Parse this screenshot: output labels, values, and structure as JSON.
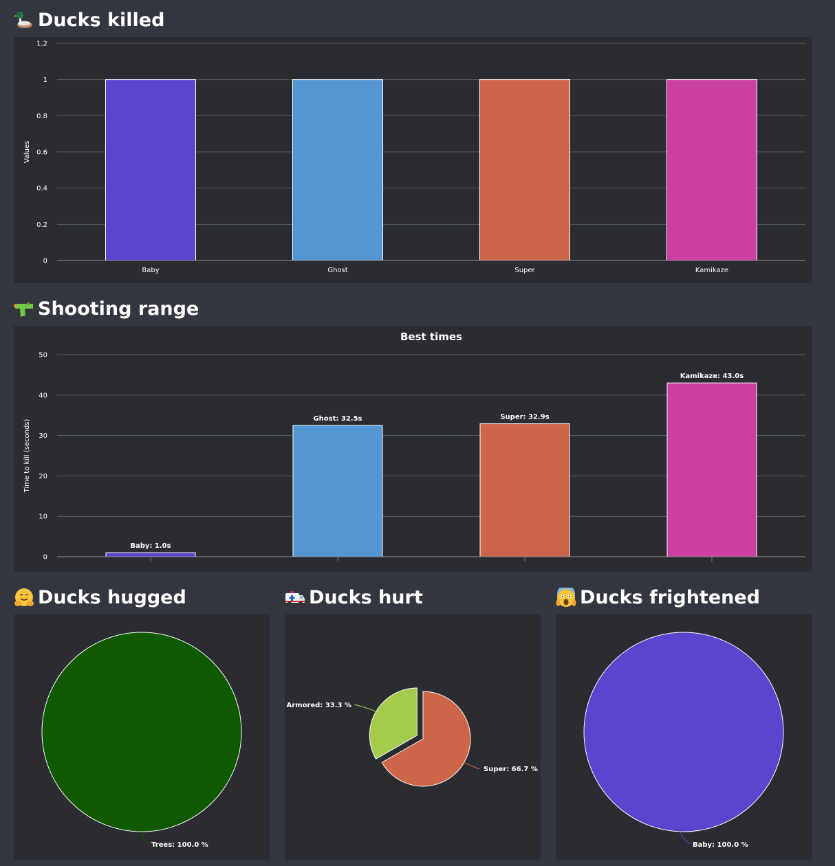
{
  "sections": {
    "killed": {
      "title": "Ducks killed",
      "icon": "duck-icon"
    },
    "shooting": {
      "title": "Shooting range",
      "icon": "water-pistol-icon"
    },
    "hugged": {
      "title": "Ducks hugged",
      "icon": "hugging-face-icon"
    },
    "hurt": {
      "title": "Ducks hurt",
      "icon": "ambulance-icon"
    },
    "frightened": {
      "title": "Ducks frightened",
      "icon": "screaming-face-icon"
    }
  },
  "chart_data": [
    {
      "id": "ducks-killed",
      "type": "bar",
      "title": "",
      "xlabel": "",
      "ylabel": "Values",
      "ylim": [
        0,
        1.2
      ],
      "yticks": [
        0,
        0.2,
        0.4,
        0.6,
        0.8,
        1,
        1.2
      ],
      "categories": [
        "Baby",
        "Ghost",
        "Super",
        "Kamikaze"
      ],
      "values": [
        1,
        1,
        1,
        1
      ],
      "colors": [
        "#5b45cf",
        "#5496d2",
        "#cd6549",
        "#cb40a1"
      ],
      "grid": true
    },
    {
      "id": "shooting-range",
      "type": "bar",
      "title": "Best times",
      "xlabel": "",
      "ylabel": "Time to kill (seconds)",
      "ylim": [
        0,
        50
      ],
      "yticks": [
        0,
        10,
        20,
        30,
        40,
        50
      ],
      "categories": [
        "Baby",
        "Ghost",
        "Super",
        "Kamikaze"
      ],
      "values": [
        1.0,
        32.5,
        32.9,
        43.0
      ],
      "data_labels": [
        "Baby: 1.0s",
        "Ghost: 32.5s",
        "Super: 32.9s",
        "Kamikaze: 43.0s"
      ],
      "colors": [
        "#5b45cf",
        "#5496d2",
        "#cd6549",
        "#cb40a1"
      ],
      "grid": true
    },
    {
      "id": "ducks-hugged",
      "type": "pie",
      "labels": [
        "Trees"
      ],
      "values": [
        100.0
      ],
      "data_labels": [
        "Trees: 100.0 %"
      ],
      "colors": [
        "#0f5a00"
      ]
    },
    {
      "id": "ducks-hurt",
      "type": "pie",
      "labels": [
        "Super",
        "Armored"
      ],
      "values": [
        66.7,
        33.3
      ],
      "data_labels": [
        "Super: 66.7 %",
        "Armored: 33.3 %"
      ],
      "colors": [
        "#cd6549",
        "#a3cc4a"
      ]
    },
    {
      "id": "ducks-frightened",
      "type": "pie",
      "labels": [
        "Baby"
      ],
      "values": [
        100.0
      ],
      "data_labels": [
        "Baby: 100.0 %"
      ],
      "colors": [
        "#5b45cf"
      ]
    }
  ]
}
